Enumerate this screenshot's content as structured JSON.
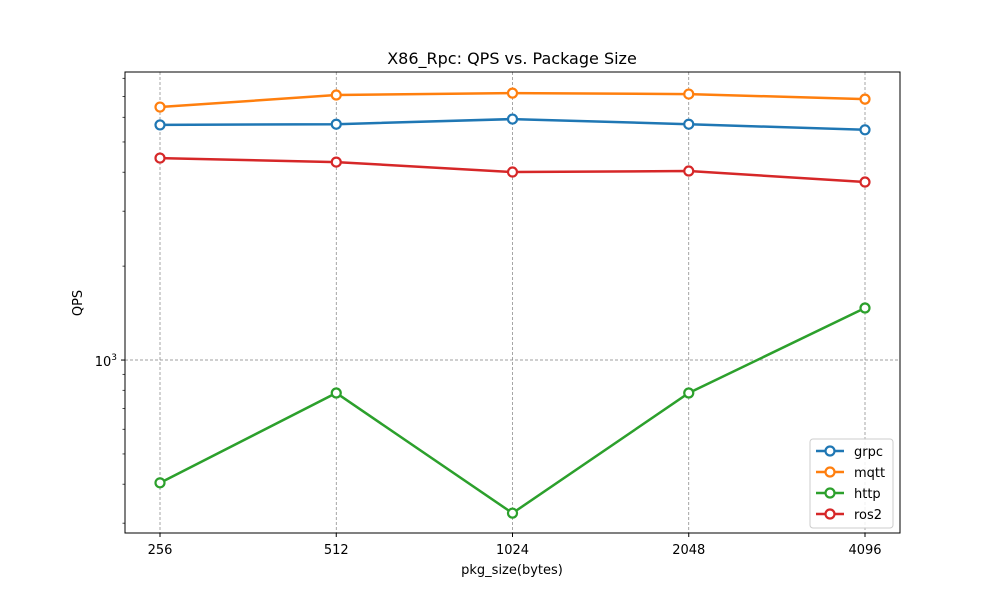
{
  "chart_data": {
    "type": "line",
    "title": "X86_Rpc:  QPS vs. Package Size",
    "xlabel": "pkg_size(bytes)",
    "ylabel": "QPS",
    "x_scale": "log2",
    "y_scale": "log",
    "categories": [
      "256",
      "512",
      "1024",
      "2048",
      "4096"
    ],
    "x": [
      256,
      512,
      1024,
      2048,
      4096
    ],
    "ylim": [
      279,
      8380
    ],
    "y_tick_labels": [
      {
        "value": 1000,
        "base": "10",
        "exp": "3"
      }
    ],
    "grid": true,
    "legend": "bottom-right",
    "series": [
      {
        "name": "grpc",
        "color": "#1f77b4",
        "values": [
          5670,
          5700,
          5920,
          5700,
          5470
        ]
      },
      {
        "name": "mqtt",
        "color": "#ff7f0e",
        "values": [
          6470,
          7070,
          7170,
          7120,
          6860
        ]
      },
      {
        "name": "http",
        "color": "#2ca02c",
        "values": [
          404,
          784,
          323,
          784,
          1468
        ]
      },
      {
        "name": "ros2",
        "color": "#d62728",
        "values": [
          4440,
          4310,
          4005,
          4035,
          3720
        ]
      }
    ]
  }
}
